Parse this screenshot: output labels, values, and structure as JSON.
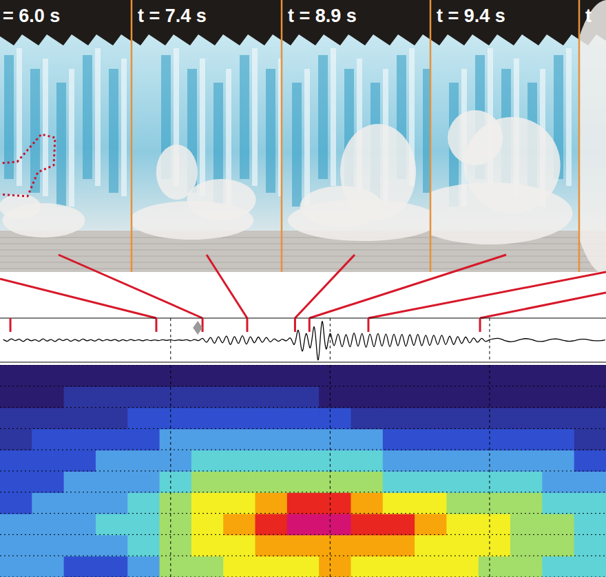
{
  "panels": [
    {
      "label": "= 6.0 s"
    },
    {
      "label": "t = 7.4 s"
    },
    {
      "label": "t = 8.9 s"
    },
    {
      "label": "t = 9.4 s"
    },
    {
      "label": "t"
    }
  ],
  "chart_data": [
    {
      "type": "line",
      "color": "#000000",
      "grid": true,
      "tick_labels": false,
      "xlim": [
        -0.7,
        37.3
      ],
      "xticks": [
        10,
        20,
        30
      ],
      "ylim": [
        -1,
        1
      ],
      "x": [
        -0.5,
        -0.25,
        0,
        0.25,
        0.5,
        0.75,
        1,
        1.25,
        1.5,
        1.75,
        2,
        2.25,
        2.5,
        2.75,
        3,
        3.25,
        3.5,
        3.75,
        4,
        4.25,
        4.5,
        4.75,
        5,
        5.25,
        5.5,
        5.75,
        6,
        6.25,
        6.5,
        6.75,
        7,
        7.25,
        7.5,
        7.75,
        8,
        8.25,
        8.5,
        8.75,
        9,
        9.25,
        9.5,
        9.75,
        10,
        10.25,
        10.5,
        10.75,
        11,
        11.25,
        11.5,
        11.75,
        12,
        12.25,
        12.5,
        12.75,
        13,
        13.25,
        13.5,
        13.75,
        14,
        14.25,
        14.5,
        14.75,
        15,
        15.25,
        15.5,
        15.75,
        16,
        16.25,
        16.5,
        16.75,
        17,
        17.25,
        17.5,
        17.75,
        18,
        18.25,
        18.5,
        18.75,
        19,
        19.25,
        19.5,
        19.75,
        20,
        20.25,
        20.5,
        20.75,
        21,
        21.25,
        21.5,
        21.75,
        22,
        22.25,
        22.5,
        22.75,
        23,
        23.25,
        23.5,
        23.75,
        24,
        24.25,
        24.5,
        24.75,
        25,
        25.25,
        25.5,
        25.75,
        26,
        26.25,
        26.5,
        26.75,
        27,
        27.25,
        27.5,
        27.75,
        28,
        28.25,
        28.5,
        28.75,
        29,
        29.25,
        29.5,
        29.75,
        30,
        30.25,
        30.5,
        30.75,
        31,
        31.25,
        31.5,
        31.75,
        32,
        32.25,
        32.5,
        32.75,
        33,
        33.25,
        33.5,
        33.75,
        34,
        34.25,
        34.5,
        34.75,
        35,
        35.25,
        35.5,
        35.75,
        36,
        36.25,
        36.5,
        36.75,
        37,
        37.25
      ],
      "values": [
        0.03,
        -0.05,
        0.06,
        -0.02,
        0.04,
        -0.06,
        0.05,
        -0.03,
        0.02,
        -0.05,
        0.06,
        -0.04,
        0.03,
        -0.06,
        0.05,
        -0.02,
        0.04,
        -0.05,
        0.03,
        -0.04,
        0.05,
        -0.03,
        0.02,
        -0.04,
        0.04,
        -0.03,
        0.03,
        -0.02,
        0.03,
        -0.04,
        0.02,
        -0.03,
        0.03,
        -0.02,
        0.02,
        -0.03,
        0.02,
        -0.02,
        0.01,
        -0.02,
        0.02,
        -0.01,
        0.02,
        -0.02,
        0.01,
        -0.01,
        0.02,
        -0.03,
        0.03,
        -0.02,
        0.08,
        -0.1,
        0.12,
        -0.14,
        0.15,
        -0.12,
        0.18,
        -0.2,
        0.16,
        -0.15,
        0.2,
        -0.18,
        0.15,
        -0.12,
        0.14,
        -0.1,
        0.12,
        -0.08,
        0.06,
        -0.05,
        0.04,
        -0.03,
        0.1,
        -0.2,
        0.45,
        -0.5,
        0.3,
        -0.35,
        0.6,
        -0.9,
        0.85,
        -0.4,
        0.3,
        -0.25,
        0.28,
        -0.3,
        0.25,
        -0.3,
        0.32,
        -0.28,
        0.3,
        -0.32,
        0.28,
        -0.3,
        0.3,
        -0.27,
        0.28,
        -0.3,
        0.27,
        -0.25,
        0.26,
        -0.28,
        0.25,
        -0.24,
        0.26,
        -0.25,
        0.22,
        -0.24,
        0.22,
        -0.2,
        0.22,
        -0.2,
        0.18,
        -0.2,
        0.16,
        -0.15,
        0.14,
        -0.12,
        0.1,
        -0.1,
        0.08,
        -0.06,
        0.02,
        0.06,
        0.08,
        0.04,
        -0.03,
        -0.07,
        -0.06,
        -0.01,
        0.04,
        0.07,
        0.05,
        0,
        -0.05,
        -0.06,
        -0.03,
        0.02,
        0.05,
        0.05,
        0.01,
        -0.03,
        -0.05,
        -0.03,
        0.01,
        0.04,
        0.04,
        0.01,
        -0.02,
        -0.03,
        -0.02,
        0.01
      ],
      "markers": {
        "x": [
          -0.05,
          9.1,
          12.0,
          14.8,
          17.8,
          18.7,
          22.4,
          29.4
        ],
        "color": "#d7182a"
      },
      "onset": {
        "x": 11.7,
        "color": "#9a9a9a",
        "marker": "diamond"
      }
    },
    {
      "type": "heatmap",
      "grid": true,
      "tick_labels": false,
      "xlim": [
        -0.7,
        37.3
      ],
      "xticks": [
        10,
        20,
        30
      ],
      "ylim": [
        0,
        50
      ],
      "yticks": [
        0,
        5,
        10,
        15,
        20,
        25,
        30,
        35,
        40,
        45,
        50
      ],
      "color_range": [
        0,
        10
      ],
      "x": [
        0.3,
        2.3,
        4.3,
        6.3,
        8.3,
        10.3,
        12.3,
        14.3,
        16.3,
        18.3,
        20.3,
        22.3,
        24.3,
        26.3,
        28.3,
        30.3,
        32.3,
        34.3,
        36.3
      ],
      "y": [
        2.5,
        7.5,
        12.5,
        17.5,
        22.5,
        27.5,
        32.5,
        37.5,
        42.5,
        47.5
      ],
      "power": [
        [
          3,
          3,
          2,
          2,
          3,
          5,
          5,
          6,
          6,
          6,
          7,
          6,
          6,
          6,
          6,
          5,
          5,
          4,
          4
        ],
        [
          3,
          3,
          3,
          3,
          4,
          5,
          6,
          6,
          7,
          7,
          7,
          7,
          7,
          6,
          6,
          6,
          5,
          5,
          4
        ],
        [
          3,
          3,
          3,
          4,
          4,
          5,
          6,
          7,
          8,
          9,
          9,
          8,
          8,
          7,
          6,
          6,
          5,
          5,
          4
        ],
        [
          2,
          3,
          3,
          3,
          4,
          5,
          6,
          6,
          7,
          8,
          8,
          7,
          6,
          6,
          5,
          5,
          5,
          4,
          4
        ],
        [
          2,
          2,
          3,
          3,
          3,
          4,
          5,
          5,
          5,
          5,
          5,
          5,
          4,
          4,
          4,
          4,
          4,
          3,
          3
        ],
        [
          2,
          2,
          2,
          3,
          3,
          3,
          4,
          4,
          4,
          4,
          4,
          4,
          3,
          3,
          3,
          3,
          3,
          3,
          2
        ],
        [
          1,
          2,
          2,
          2,
          2,
          3,
          3,
          3,
          3,
          3,
          3,
          3,
          2,
          2,
          2,
          2,
          2,
          2,
          1
        ],
        [
          1,
          1,
          1,
          1,
          2,
          2,
          2,
          2,
          2,
          2,
          2,
          1,
          1,
          1,
          1,
          1,
          1,
          1,
          1
        ],
        [
          0,
          0,
          1,
          1,
          1,
          1,
          1,
          1,
          1,
          1,
          0,
          0,
          0,
          0,
          0,
          0,
          0,
          0,
          0
        ],
        [
          0,
          0,
          0,
          0,
          0,
          0,
          0,
          0,
          0,
          0,
          0,
          0,
          0,
          0,
          0,
          0,
          0,
          0,
          0
        ]
      ]
    }
  ]
}
